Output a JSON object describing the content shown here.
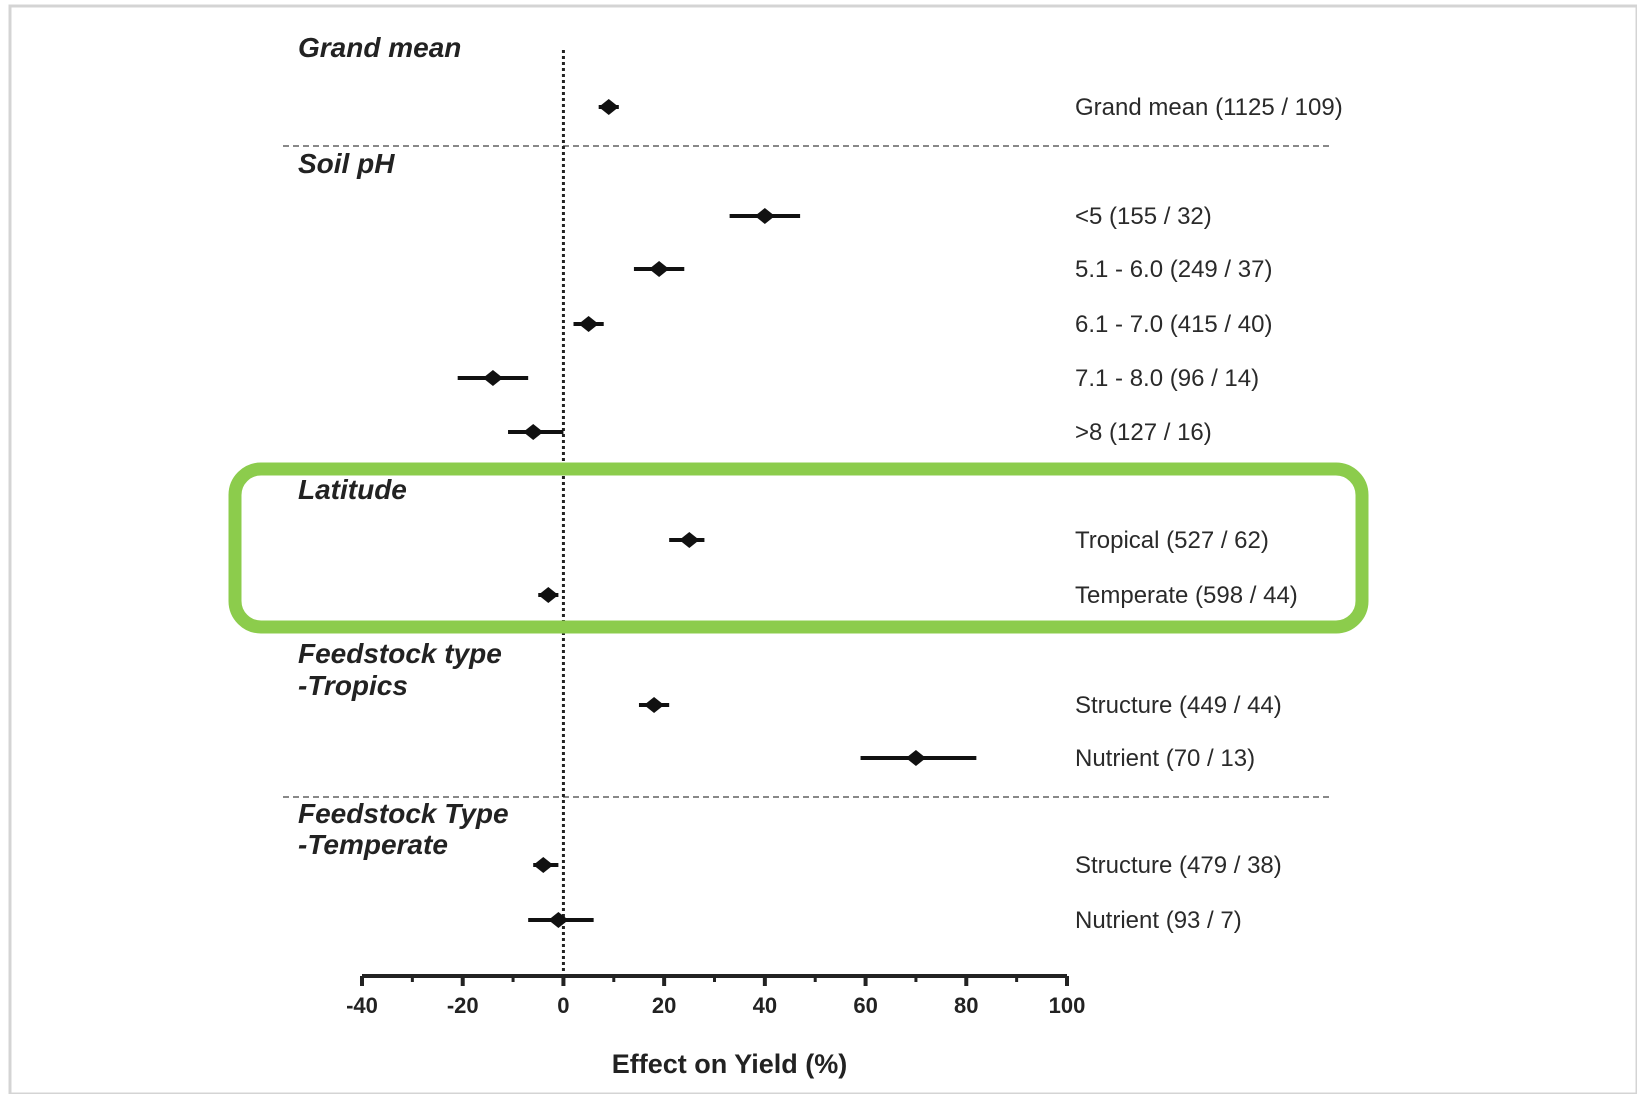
{
  "chart_data": {
    "type": "scatter",
    "subtype": "forest-plot",
    "xlabel": "Effect on Yield (%)",
    "xlim": [
      -40,
      100
    ],
    "xticks": [
      -40,
      -20,
      0,
      20,
      40,
      60,
      80,
      100
    ],
    "xtick_labels": [
      "-40",
      "-20",
      "0",
      "20",
      "40",
      "60",
      "80",
      "100"
    ],
    "reference_line_x": 0,
    "highlight_color": "#8ccc4c",
    "point_color": "#111111",
    "groups": [
      {
        "label_lines": [
          "Grand mean"
        ],
        "rows": [
          {
            "label": "Grand mean (1125 / 109)",
            "mean": 9,
            "lower": 7,
            "upper": 11
          }
        ]
      },
      {
        "label_lines": [
          "Soil pH"
        ],
        "rows": [
          {
            "label": "<5 (155 / 32)",
            "mean": 40,
            "lower": 33,
            "upper": 47
          },
          {
            "label": "5.1 - 6.0 (249 / 37)",
            "mean": 19,
            "lower": 14,
            "upper": 24
          },
          {
            "label": "6.1 - 7.0 (415 / 40)",
            "mean": 5,
            "lower": 2,
            "upper": 8
          },
          {
            "label": "7.1 - 8.0 (96 / 14)",
            "mean": -14,
            "lower": -21,
            "upper": -7
          },
          {
            "label": ">8 (127 / 16)",
            "mean": -6,
            "lower": -11,
            "upper": 0
          }
        ]
      },
      {
        "label_lines": [
          "Latitude"
        ],
        "highlighted": true,
        "rows": [
          {
            "label": "Tropical (527 / 62)",
            "mean": 25,
            "lower": 21,
            "upper": 28
          },
          {
            "label": "Temperate (598 / 44)",
            "mean": -3,
            "lower": -5,
            "upper": -1
          }
        ]
      },
      {
        "label_lines": [
          "Feedstock type",
          "-Tropics"
        ],
        "rows": [
          {
            "label": "Structure (449 / 44)",
            "mean": 18,
            "lower": 15,
            "upper": 21
          },
          {
            "label": "Nutrient (70 / 13)",
            "mean": 70,
            "lower": 59,
            "upper": 82
          }
        ]
      },
      {
        "label_lines": [
          "Feedstock Type",
          "-Temperate"
        ],
        "rows": [
          {
            "label": "Structure (479 / 38)",
            "mean": -4,
            "lower": -6,
            "upper": -1
          },
          {
            "label": "Nutrient (93 / 7)",
            "mean": -1,
            "lower": -7,
            "upper": 6
          }
        ]
      }
    ]
  }
}
